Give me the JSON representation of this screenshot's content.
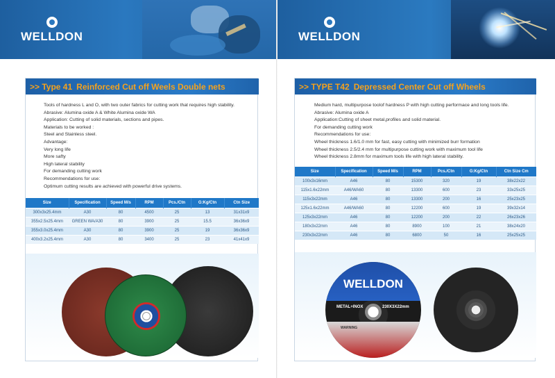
{
  "brand": "WELLDON",
  "left": {
    "heading_prefix": ">> Type 41",
    "heading_title": "Reinforced Cut off Weels Double nets",
    "description": [
      "Tools of hardness L and O, with two outer fabrics for cutting work that requires high stability.",
      "Abrasive:   Alumina oxide A & White Alumina oxide WA",
      "Application:  Cutting of solid materials, sections and pipes.",
      "Materials to be worked :",
      "Steel and Stainless steel.",
      "Advantage:",
      "Very long life",
      "More safty",
      "High lateral stability",
      "For demanding cutting work",
      "Recommendations for use:",
      "Optimum cutting results are achieved with powerful drive systems."
    ],
    "table": {
      "headers": [
        "Size",
        "Specification",
        "Speed M/s",
        "RPM",
        "Pcs./Ctn",
        "G:Kg/Ctn",
        "Ctn Size"
      ],
      "rows": [
        [
          "300x3x25.4mm",
          "A30",
          "80",
          "4500",
          "25",
          "13",
          "31x31x9"
        ],
        [
          "355x2.5x25.4mm",
          "GREEN WA/A30",
          "80",
          "3900",
          "25",
          "15.5",
          "36x36x9"
        ],
        [
          "355x3.0x25.4mm",
          "A30",
          "80",
          "3900",
          "25",
          "19",
          "36x36x9"
        ],
        [
          "400x3.2x25.4mm",
          "A30",
          "80",
          "3400",
          "25",
          "23",
          "41x41x9"
        ]
      ]
    }
  },
  "right": {
    "heading_prefix": ">> TYPE T42",
    "heading_title": "Depressed Center Cut off Wheels",
    "description": [
      "Medium hard, multipurpose toolof hardness P with high cutting performace and long tools life.",
      "Abrasive:   Alumina oxide A",
      "Application:Cutting of sheet metal,profiles and solid material.",
      "For demanding cutting work",
      "Recommendations for use:",
      "Wheel thickness 1.6/1.0 mm for fast, easy cutting with minimized burr formation",
      "Wheel thickness 2.5/2.4 mm for multipurpose cutting work with maximum tool life",
      "Wheel thickness 2.8mm for maximum tools life with high lateral stability."
    ],
    "table": {
      "headers": [
        "Size",
        "Specification",
        "Speed M/s",
        "RPM",
        "Pcs./Ctn",
        "G:Kg/Ctn",
        "Ctn  Size  Cm"
      ],
      "rows": [
        [
          "100x3x16mm",
          "A46",
          "80",
          "15300",
          "320",
          "19",
          "38x22x22"
        ],
        [
          "115x1.6x22mm",
          "A46/WA60",
          "80",
          "13300",
          "600",
          "23",
          "33x25x25"
        ],
        [
          "115x3x22mm",
          "A46",
          "80",
          "13300",
          "200",
          "16",
          "25x23x25"
        ],
        [
          "125x1.6x22mm",
          "A46/WA60",
          "80",
          "12200",
          "600",
          "19",
          "39x32x14"
        ],
        [
          "125x3x22mm",
          "A46",
          "80",
          "12200",
          "200",
          "22",
          "26x23x26"
        ],
        [
          "180x3x22mm",
          "A46",
          "80",
          "8900",
          "100",
          "21",
          "38x24x20"
        ],
        [
          "230x3x22mm",
          "A46",
          "80",
          "6800",
          "50",
          "16",
          "25x25x25"
        ]
      ]
    },
    "wheel_label": {
      "brand": "WELLDON",
      "type": "METAL+INOX",
      "size": "230X3X22mm",
      "warning": "WARNING"
    }
  },
  "colors": {
    "banner_blue": "#2a78bf",
    "heading_orange": "#f6a21c",
    "table_header": "#1f78c8",
    "row_light": "#d5e8f7"
  }
}
